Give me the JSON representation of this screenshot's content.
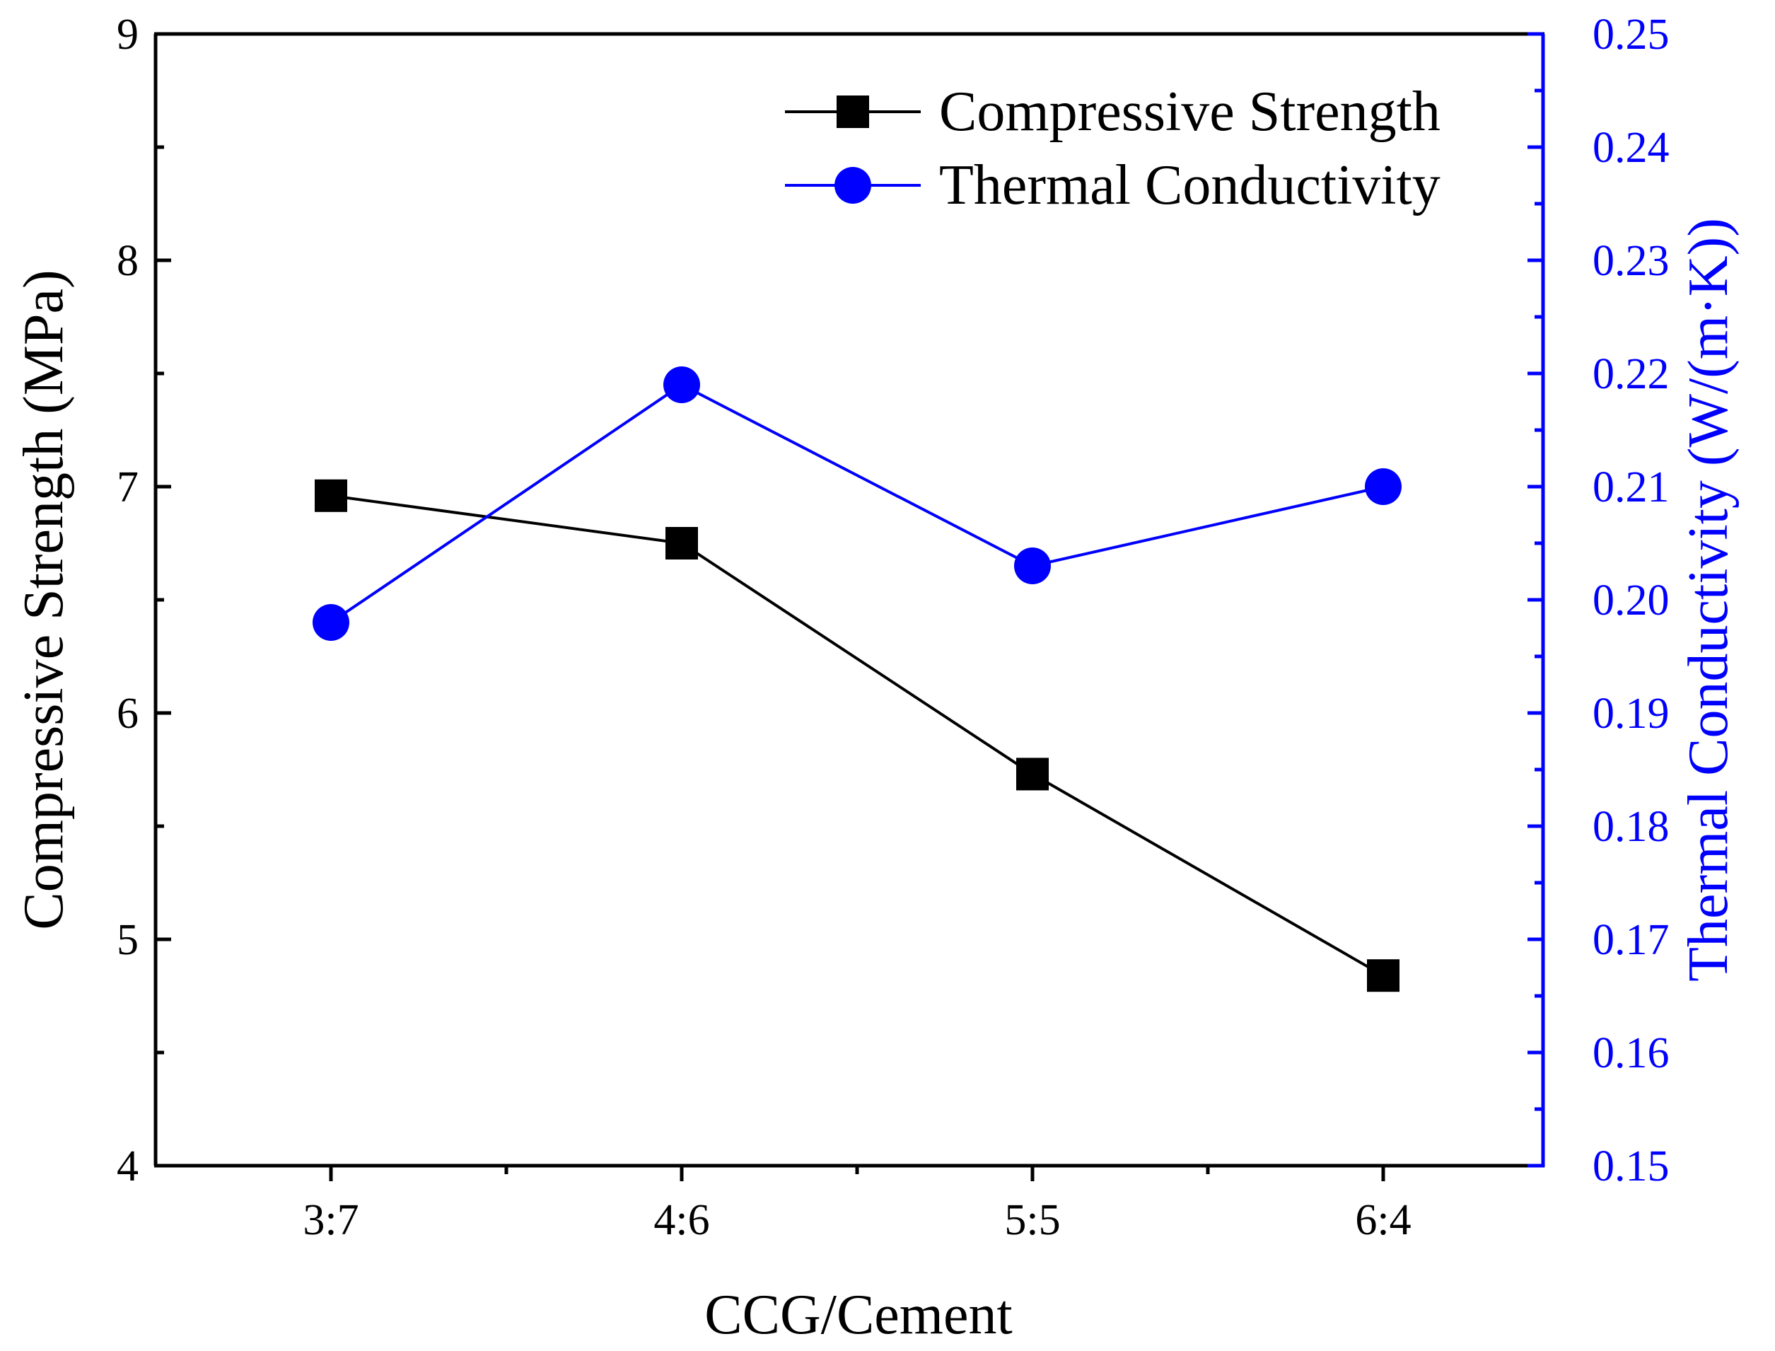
{
  "chart_data": {
    "type": "line",
    "categories": [
      "3:7",
      "4:6",
      "5:5",
      "6:4"
    ],
    "xlabel": "CCG/Cement",
    "ylabel_left": "Compressive Strength (MPa)",
    "ylabel_right": "Thermal Conductivity (W/(m·K))",
    "ylim_left": [
      4,
      9
    ],
    "ylim_right": [
      0.15,
      0.25
    ],
    "yticks_left": [
      "4",
      "5",
      "6",
      "7",
      "8",
      "9"
    ],
    "yticks_right": [
      "0.15",
      "0.16",
      "0.17",
      "0.18",
      "0.19",
      "0.20",
      "0.21",
      "0.22",
      "0.23",
      "0.24",
      "0.25"
    ],
    "legend_position": "top-right",
    "series": [
      {
        "name": "Compressive Strength",
        "axis": "left",
        "marker": "square",
        "color": "#000000",
        "values": [
          6.96,
          6.75,
          5.73,
          4.84
        ]
      },
      {
        "name": "Thermal Conductivity",
        "axis": "right",
        "marker": "circle",
        "color": "#0000ff",
        "values": [
          0.198,
          0.219,
          0.203,
          0.21
        ]
      }
    ]
  }
}
